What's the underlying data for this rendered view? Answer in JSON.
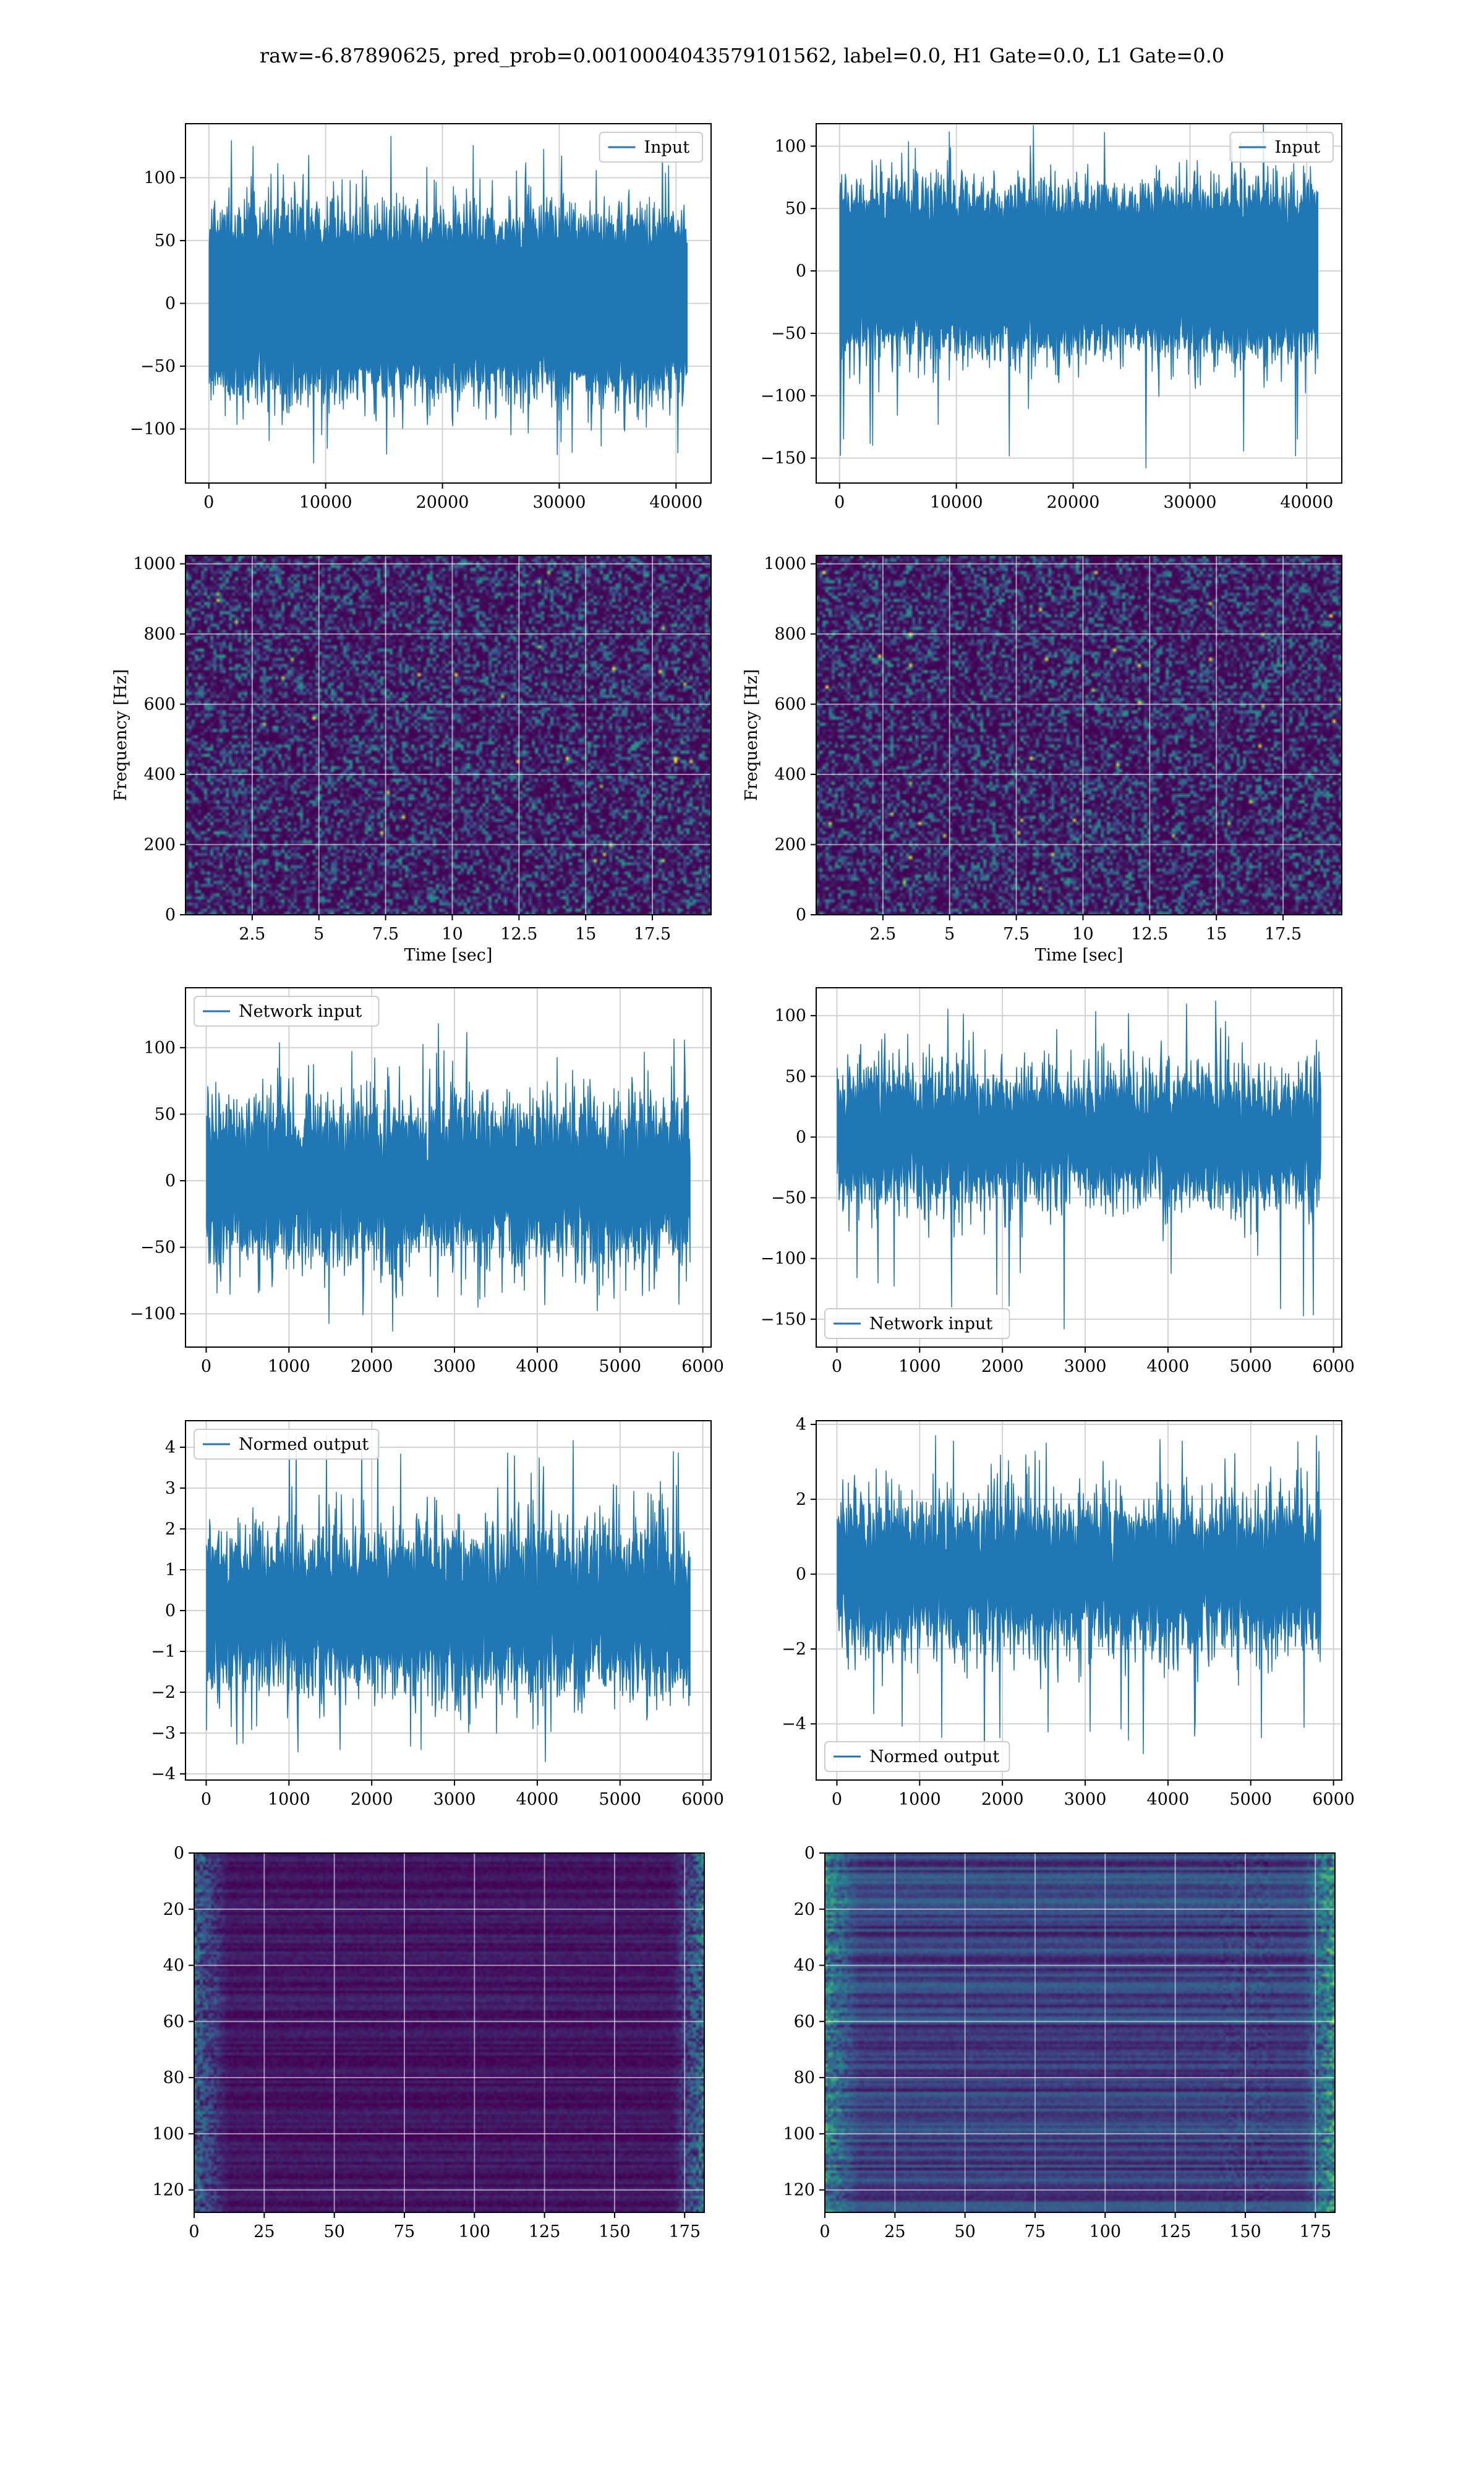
{
  "suptitle": "raw=-6.87890625, pred_prob=0.0010004043579101562, label=0.0, H1 Gate=0.0, L1 Gate=0.0",
  "colors": {
    "line": "#1f77b4",
    "grid": "#d2d2d2",
    "viridis_low": "#440154",
    "viridis_mid": "#21918c",
    "viridis_high": "#fde725"
  },
  "chart_data": [
    {
      "id": "h1-input",
      "type": "line",
      "icon": "waveform",
      "legend": [
        "Input"
      ],
      "legend_loc": "upper right",
      "n_points": 40960,
      "amplitude_std": 28,
      "spike_max": 133,
      "spike_min": -127,
      "xlim": [
        -2000,
        43000
      ],
      "ylim": [
        -143,
        143
      ],
      "xticks": [
        0,
        10000,
        20000,
        30000,
        40000
      ],
      "yticks": [
        -100,
        -50,
        0,
        50,
        100
      ],
      "xlabel": "",
      "ylabel": "",
      "grid": true
    },
    {
      "id": "l1-input",
      "type": "line",
      "icon": "waveform",
      "legend": [
        "Input"
      ],
      "legend_loc": "upper right",
      "n_points": 40960,
      "amplitude_std": 26,
      "spike_max": 118,
      "spike_min": -158,
      "xlim": [
        -2000,
        43000
      ],
      "ylim": [
        -170,
        118
      ],
      "xticks": [
        0,
        10000,
        20000,
        30000,
        40000
      ],
      "yticks": [
        -150,
        -100,
        -50,
        0,
        50,
        100
      ],
      "xlabel": "",
      "ylabel": "",
      "grid": true
    },
    {
      "id": "h1-spectrogram",
      "type": "heatmap",
      "icon": "spectrogram",
      "xlim": [
        0,
        19.7
      ],
      "ylim": [
        0,
        1024
      ],
      "xticks": [
        2.5,
        5.0,
        7.5,
        10.0,
        12.5,
        15.0,
        17.5
      ],
      "yticks": [
        0,
        200,
        400,
        600,
        800,
        1000
      ],
      "xlabel": "Time [sec]",
      "ylabel": "Frequency [Hz]",
      "grid": true,
      "colormap": "viridis"
    },
    {
      "id": "l1-spectrogram",
      "type": "heatmap",
      "icon": "spectrogram",
      "xlim": [
        0,
        19.7
      ],
      "ylim": [
        0,
        1024
      ],
      "xticks": [
        2.5,
        5.0,
        7.5,
        10.0,
        12.5,
        15.0,
        17.5
      ],
      "yticks": [
        0,
        200,
        400,
        600,
        800,
        1000
      ],
      "xlabel": "Time [sec]",
      "ylabel": "Frequency [Hz]",
      "grid": true,
      "colormap": "viridis"
    },
    {
      "id": "h1-network-input",
      "type": "line",
      "icon": "waveform",
      "legend": [
        "Network input"
      ],
      "legend_loc": "upper left",
      "n_points": 5850,
      "amplitude_std": 28,
      "spike_max": 118,
      "spike_min": -113,
      "xlim": [
        -250,
        6100
      ],
      "ylim": [
        -125,
        145
      ],
      "xticks": [
        0,
        1000,
        2000,
        3000,
        4000,
        5000,
        6000
      ],
      "yticks": [
        -100,
        -50,
        0,
        50,
        100
      ],
      "xlabel": "",
      "ylabel": "",
      "grid": true
    },
    {
      "id": "l1-network-input",
      "type": "line",
      "icon": "waveform",
      "legend": [
        "Network input"
      ],
      "legend_loc": "lower left",
      "n_points": 5850,
      "amplitude_std": 26,
      "spike_max": 112,
      "spike_min": -158,
      "xlim": [
        -250,
        6100
      ],
      "ylim": [
        -173,
        123
      ],
      "xticks": [
        0,
        1000,
        2000,
        3000,
        4000,
        5000,
        6000
      ],
      "yticks": [
        -150,
        -100,
        -50,
        0,
        50,
        100
      ],
      "xlabel": "",
      "ylabel": "",
      "grid": true
    },
    {
      "id": "h1-normed-output",
      "type": "line",
      "icon": "waveform",
      "legend": [
        "Normed output"
      ],
      "legend_loc": "upper left",
      "n_points": 5850,
      "amplitude_std": 0.95,
      "spike_max": 4.3,
      "spike_min": -3.7,
      "xlim": [
        -250,
        6100
      ],
      "ylim": [
        -4.15,
        4.65
      ],
      "xticks": [
        0,
        1000,
        2000,
        3000,
        4000,
        5000,
        6000
      ],
      "yticks": [
        -4,
        -3,
        -2,
        -1,
        0,
        1,
        2,
        3,
        4
      ],
      "xlabel": "",
      "ylabel": "",
      "grid": true
    },
    {
      "id": "l1-normed-output",
      "type": "line",
      "icon": "waveform",
      "legend": [
        "Normed output"
      ],
      "legend_loc": "lower left",
      "n_points": 5850,
      "amplitude_std": 0.95,
      "spike_max": 3.7,
      "spike_min": -5.1,
      "xlim": [
        -250,
        6100
      ],
      "ylim": [
        -5.5,
        4.1
      ],
      "xticks": [
        0,
        1000,
        2000,
        3000,
        4000,
        5000,
        6000
      ],
      "yticks": [
        -4,
        -2,
        0,
        2,
        4
      ],
      "xlabel": "",
      "ylabel": "",
      "grid": true
    },
    {
      "id": "h1-feature-map",
      "type": "heatmap",
      "icon": "feature-map",
      "rows": 128,
      "cols": 182,
      "xlim": [
        0,
        182
      ],
      "ylim": [
        128,
        0
      ],
      "xticks": [
        0,
        25,
        50,
        75,
        100,
        125,
        150,
        175
      ],
      "yticks": [
        0,
        20,
        40,
        60,
        80,
        100,
        120
      ],
      "xlabel": "",
      "ylabel": "",
      "grid": true,
      "colormap": "viridis"
    },
    {
      "id": "l1-feature-map",
      "type": "heatmap",
      "icon": "feature-map",
      "rows": 128,
      "cols": 182,
      "xlim": [
        0,
        182
      ],
      "ylim": [
        128,
        0
      ],
      "xticks": [
        0,
        25,
        50,
        75,
        100,
        125,
        150,
        175
      ],
      "yticks": [
        0,
        20,
        40,
        60,
        80,
        100,
        120
      ],
      "xlabel": "",
      "ylabel": "",
      "grid": true,
      "colormap": "viridis"
    }
  ]
}
